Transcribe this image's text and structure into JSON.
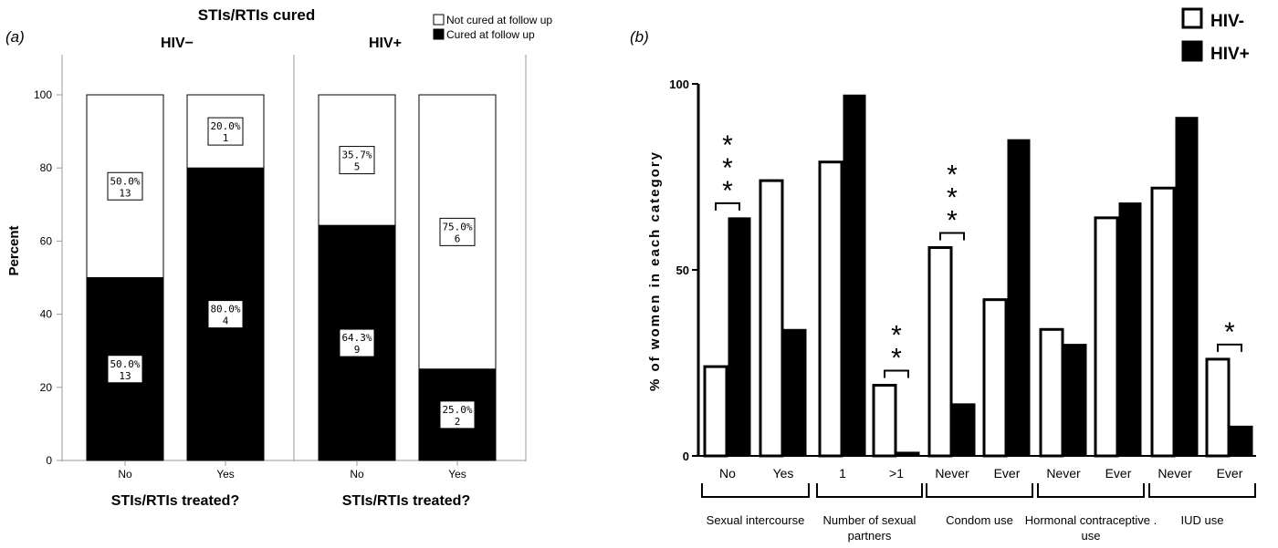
{
  "panel_a": {
    "label": "(a)",
    "title": "STIs/RTIs cured",
    "legend": [
      {
        "label": "Not cured at follow up",
        "fill": "#ffffff"
      },
      {
        "label": "Cured at follow up",
        "fill": "#000000"
      }
    ],
    "ylabel": "Percent",
    "xlabel": "STIs/RTIs treated?",
    "yticks": [
      "0",
      "20",
      "40",
      "60",
      "80",
      "100"
    ]
  },
  "panel_b": {
    "label": "(b)",
    "ylabel": "% of women in each category",
    "yticks": [
      "0",
      "50",
      "100"
    ],
    "legend": [
      {
        "label": "HIV-",
        "fill": "#ffffff"
      },
      {
        "label": "HIV+",
        "fill": "#000000"
      }
    ]
  },
  "chart_data": [
    {
      "type": "bar",
      "stacked": true,
      "percent": true,
      "title": "STIs/RTIs cured",
      "xlabel": "STIs/RTIs treated?",
      "ylabel": "Percent",
      "ylim": [
        0,
        100
      ],
      "panels": [
        {
          "name": "HIV−",
          "categories": [
            "No",
            "Yes"
          ],
          "series": [
            {
              "name": "Cured at follow up",
              "values": [
                50.0,
                80.0
              ],
              "counts": [
                13,
                4
              ],
              "labels": [
                "50.0%",
                "80.0%"
              ]
            },
            {
              "name": "Not cured at follow up",
              "values": [
                50.0,
                20.0
              ],
              "counts": [
                13,
                1
              ],
              "labels": [
                "50.0%",
                "20.0%"
              ]
            }
          ]
        },
        {
          "name": "HIV+",
          "categories": [
            "No",
            "Yes"
          ],
          "series": [
            {
              "name": "Cured at follow up",
              "values": [
                64.3,
                25.0
              ],
              "counts": [
                9,
                2
              ],
              "labels": [
                "64.3%",
                "25.0%"
              ]
            },
            {
              "name": "Not cured at follow up",
              "values": [
                35.7,
                75.0
              ],
              "counts": [
                5,
                6
              ],
              "labels": [
                "35.7%",
                "75.0%"
              ]
            }
          ]
        }
      ],
      "legend_position": "top-right",
      "grid": false
    },
    {
      "type": "bar",
      "ylabel": "% of women in each category",
      "ylim": [
        0,
        100
      ],
      "groups": [
        {
          "label": "Sexual intercourse",
          "categories": [
            "No",
            "Yes"
          ]
        },
        {
          "label": "Number of sexual partners",
          "categories": [
            "1",
            ">1"
          ]
        },
        {
          "label": "Condom use",
          "categories": [
            "Never",
            "Ever"
          ]
        },
        {
          "label": "Hormonal contraceptive . use",
          "categories": [
            "Never",
            "Ever"
          ]
        },
        {
          "label": "IUD use",
          "categories": [
            "Never",
            "Ever"
          ]
        }
      ],
      "categories": [
        "No",
        "Yes",
        "1",
        ">1",
        "Never",
        "Ever",
        "Never",
        "Ever",
        "Never",
        "Ever"
      ],
      "series": [
        {
          "name": "HIV-",
          "values": [
            24,
            74,
            79,
            19,
            56,
            42,
            34,
            64,
            72,
            26
          ]
        },
        {
          "name": "HIV+",
          "values": [
            64,
            34,
            97,
            1,
            14,
            85,
            30,
            68,
            91,
            8
          ]
        }
      ],
      "annotations": [
        {
          "category_index": 0,
          "text": "***"
        },
        {
          "category_index": 3,
          "text": "**"
        },
        {
          "category_index": 4,
          "text": "***"
        },
        {
          "category_index": 9,
          "text": "*"
        }
      ],
      "legend_position": "top-right",
      "grid": false
    }
  ]
}
